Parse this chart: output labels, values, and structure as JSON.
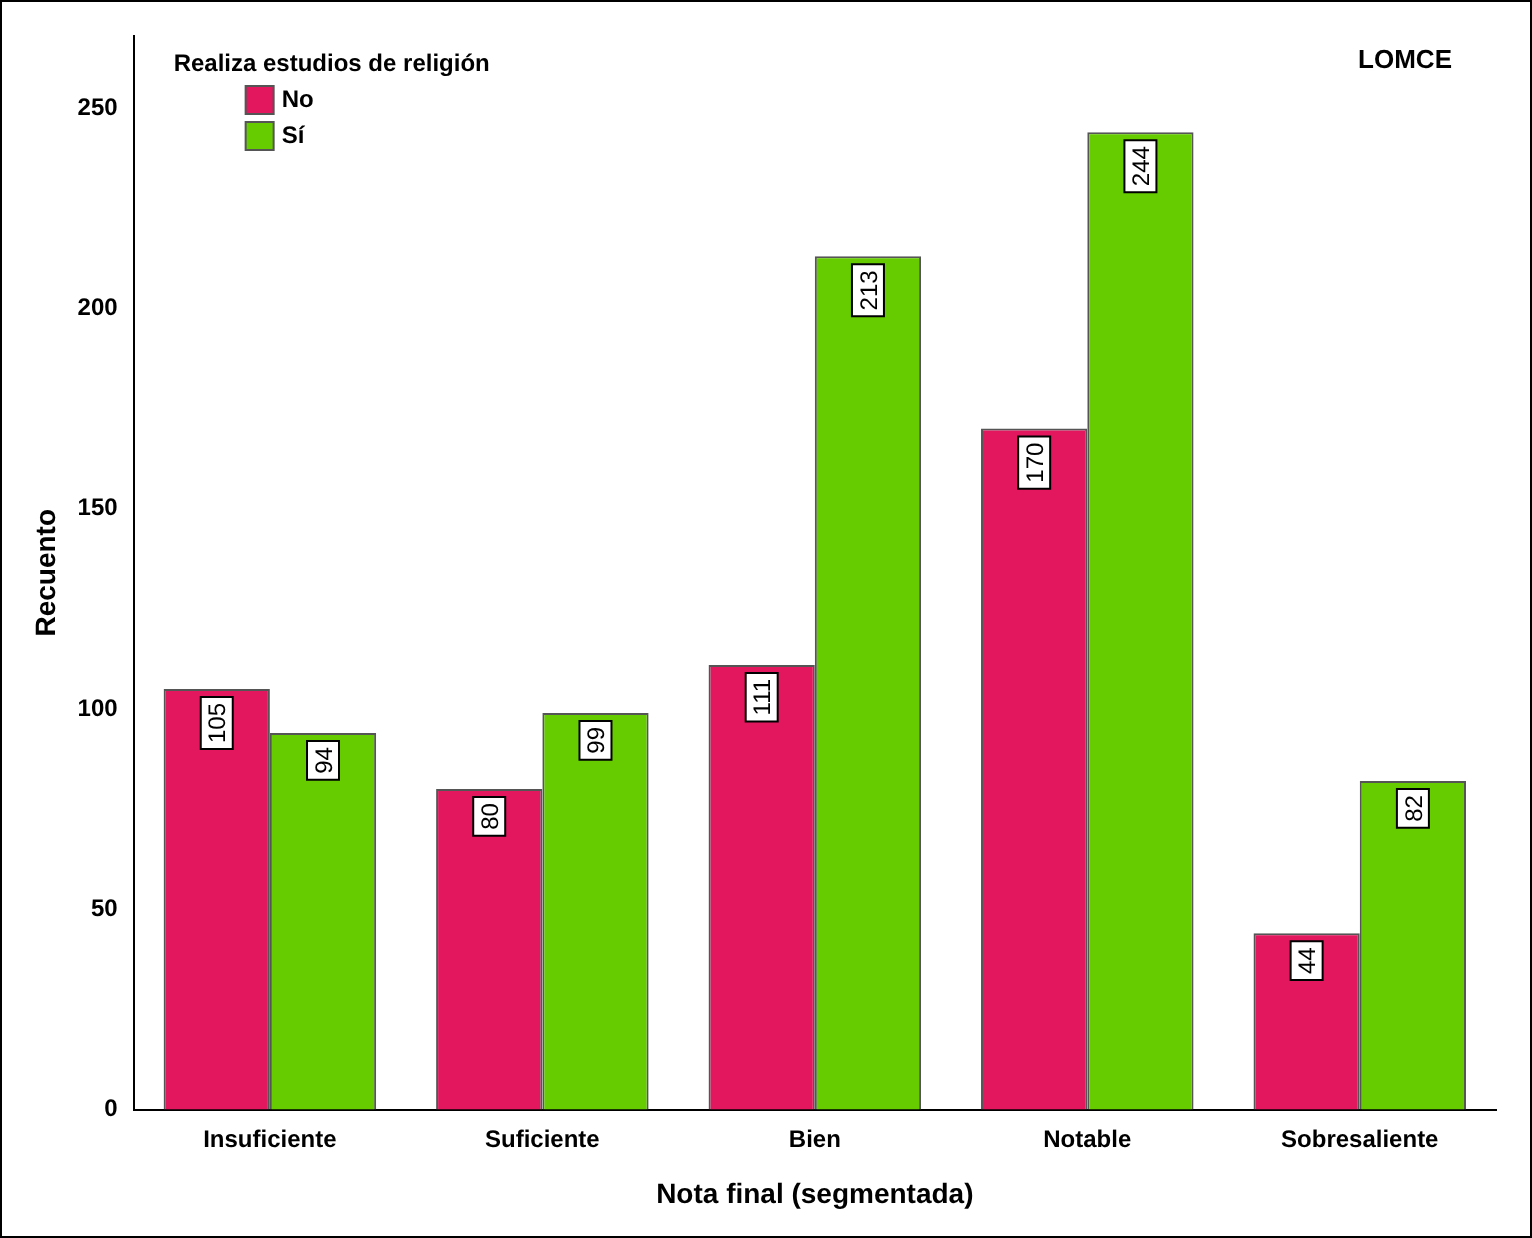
{
  "chart_data": {
    "type": "bar",
    "xlabel": "Nota final (segmentada)",
    "ylabel": "Recuento",
    "legend_title": "Realiza estudios de religión",
    "annotations": [
      "LOMCE"
    ],
    "categories": [
      "Insuficiente",
      "Suficiente",
      "Bien",
      "Notable",
      "Sobresaliente"
    ],
    "series": [
      {
        "name": "No",
        "color": "#e3175e",
        "values": [
          105,
          80,
          111,
          170,
          44
        ]
      },
      {
        "name": "Sí",
        "color": "#66cc00",
        "values": [
          94,
          99,
          213,
          244,
          82
        ]
      }
    ],
    "ylim": [
      0,
      268
    ],
    "yticks": [
      0,
      50,
      100,
      150,
      200,
      250
    ],
    "grid": false,
    "legend": "top left",
    "data_labels": true
  }
}
